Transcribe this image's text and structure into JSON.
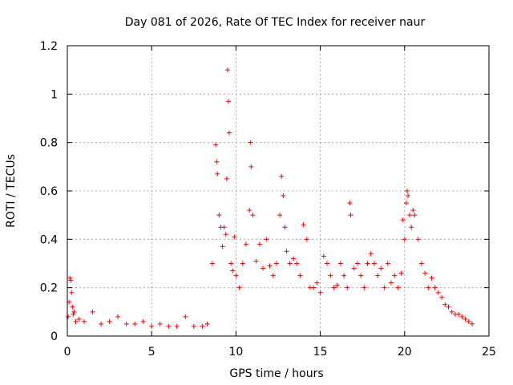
{
  "chart_data": {
    "type": "scatter",
    "title": "Day 081 of 2026, Rate Of TEC Index for receiver naur",
    "xlabel": "GPS time / hours",
    "ylabel": "ROTI / TECUs",
    "xlim": [
      0,
      25
    ],
    "ylim": [
      0,
      1.2
    ],
    "x_ticks": [
      0,
      5,
      10,
      15,
      20,
      25
    ],
    "x_tick_labels": [
      "0",
      "5",
      "10",
      "15",
      "20",
      "25"
    ],
    "y_ticks": [
      0,
      0.2,
      0.4,
      0.6,
      0.8,
      1.0,
      1.2
    ],
    "y_tick_labels": [
      "0",
      "0.2",
      "0.4",
      "0.6",
      "0.8",
      "1",
      "1.2"
    ],
    "grid": true,
    "marker": "+",
    "color": "#ff0000",
    "series": [
      {
        "name": "ROTI",
        "x": [
          0.05,
          0.1,
          0.15,
          0.2,
          0.25,
          0.3,
          0.35,
          0.4,
          0.5,
          0.7,
          1.0,
          1.5,
          2.0,
          2.5,
          3.0,
          3.5,
          4.0,
          4.5,
          5.0,
          5.5,
          6.0,
          6.5,
          7.0,
          7.5,
          8.0,
          8.3,
          8.6,
          8.8,
          8.85,
          8.9,
          9.0,
          9.1,
          9.2,
          9.3,
          9.4,
          9.45,
          9.5,
          9.55,
          9.6,
          9.7,
          9.8,
          9.9,
          10.0,
          10.2,
          10.4,
          10.6,
          10.8,
          10.85,
          10.9,
          11.0,
          11.2,
          11.4,
          11.6,
          11.8,
          12.0,
          12.2,
          12.4,
          12.6,
          12.7,
          12.8,
          12.9,
          13.0,
          13.2,
          13.4,
          13.6,
          13.8,
          14.0,
          14.2,
          14.4,
          14.6,
          14.8,
          15.0,
          15.2,
          15.4,
          15.6,
          15.8,
          16.0,
          16.2,
          16.4,
          16.6,
          16.75,
          16.8,
          17.0,
          17.2,
          17.4,
          17.6,
          17.8,
          18.0,
          18.2,
          18.4,
          18.6,
          18.8,
          19.0,
          19.2,
          19.4,
          19.6,
          19.8,
          19.9,
          20.0,
          20.1,
          20.15,
          20.2,
          20.3,
          20.4,
          20.5,
          20.6,
          20.8,
          21.0,
          21.2,
          21.4,
          21.6,
          21.8,
          22.0,
          22.2,
          22.4,
          22.6,
          22.8,
          23.0,
          23.2,
          23.4,
          23.6,
          23.8,
          24.0
        ],
        "y": [
          0.08,
          0.14,
          0.24,
          0.23,
          0.18,
          0.12,
          0.09,
          0.1,
          0.06,
          0.07,
          0.06,
          0.1,
          0.05,
          0.06,
          0.08,
          0.05,
          0.05,
          0.06,
          0.04,
          0.05,
          0.04,
          0.04,
          0.08,
          0.04,
          0.04,
          0.05,
          0.3,
          0.79,
          0.72,
          0.67,
          0.5,
          0.45,
          0.37,
          0.45,
          0.42,
          0.65,
          1.1,
          0.97,
          0.84,
          0.3,
          0.27,
          0.41,
          0.25,
          0.2,
          0.3,
          0.38,
          0.52,
          0.8,
          0.7,
          0.5,
          0.31,
          0.38,
          0.28,
          0.4,
          0.29,
          0.25,
          0.3,
          0.5,
          0.66,
          0.58,
          0.45,
          0.35,
          0.3,
          0.32,
          0.3,
          0.25,
          0.46,
          0.4,
          0.2,
          0.2,
          0.22,
          0.18,
          0.33,
          0.3,
          0.25,
          0.2,
          0.21,
          0.3,
          0.25,
          0.2,
          0.55,
          0.5,
          0.28,
          0.3,
          0.25,
          0.2,
          0.3,
          0.34,
          0.3,
          0.25,
          0.28,
          0.2,
          0.3,
          0.22,
          0.25,
          0.2,
          0.26,
          0.48,
          0.4,
          0.55,
          0.6,
          0.58,
          0.5,
          0.45,
          0.52,
          0.5,
          0.4,
          0.3,
          0.26,
          0.2,
          0.24,
          0.2,
          0.18,
          0.16,
          0.13,
          0.12,
          0.1,
          0.09,
          0.09,
          0.08,
          0.07,
          0.06,
          0.05
        ]
      }
    ]
  }
}
